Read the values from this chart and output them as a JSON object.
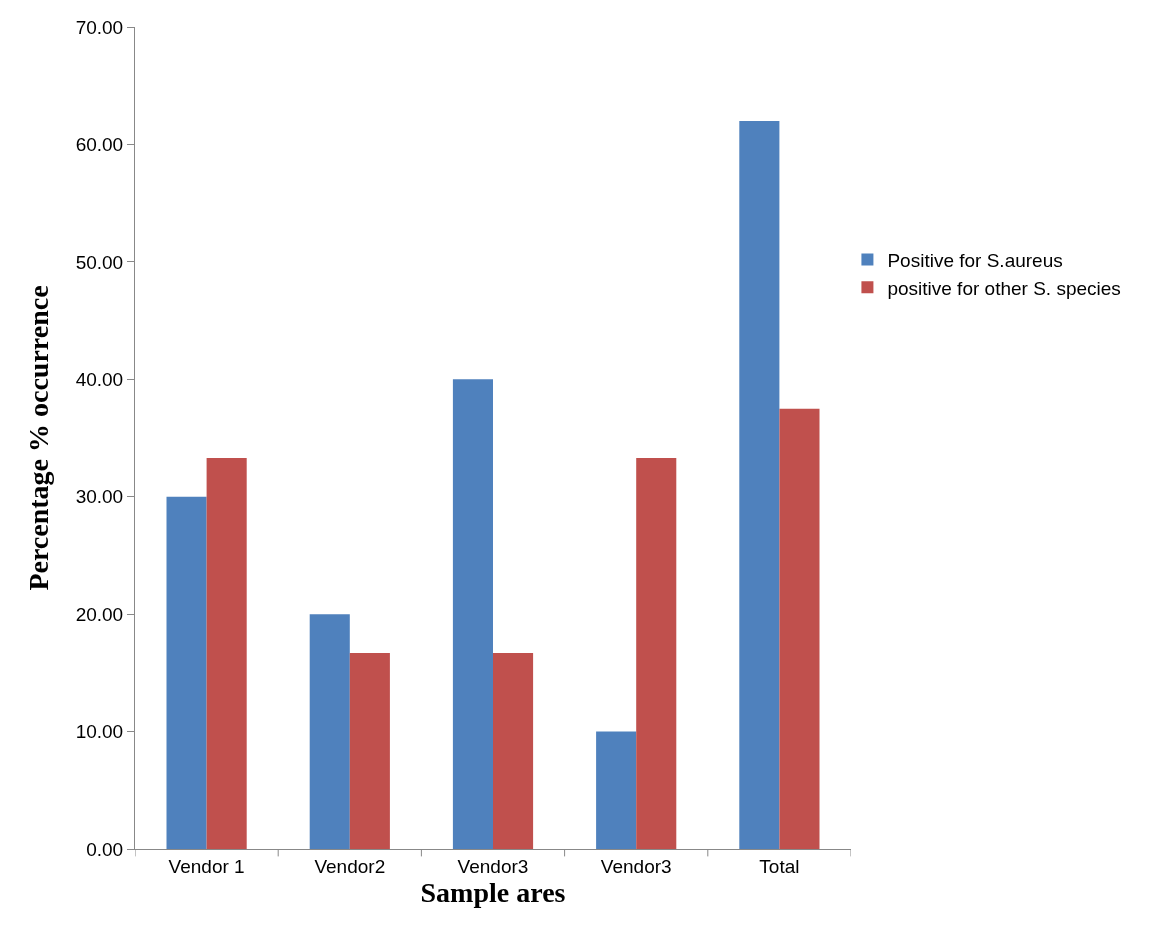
{
  "chart_data": {
    "type": "bar",
    "xlabel": "Sample ares",
    "ylabel": "Percentage % occurrence",
    "categories": [
      "Vendor 1",
      "Vendor2",
      "Vendor3",
      "Vendor3",
      "Total"
    ],
    "series": [
      {
        "name": "Positive for S.aureus",
        "color": "#4f81bd",
        "values": [
          30,
          20,
          40,
          10,
          62
        ]
      },
      {
        "name": "positive for other S. species",
        "color": "#c0504d",
        "values": [
          33.3,
          16.7,
          16.7,
          33.3,
          37.5
        ]
      }
    ],
    "ylim": [
      0,
      70
    ],
    "yticks": [
      {
        "value": 0,
        "label": "0.00"
      },
      {
        "value": 10,
        "label": "10.00"
      },
      {
        "value": 20,
        "label": "20.00"
      },
      {
        "value": 30,
        "label": "30.00"
      },
      {
        "value": 40,
        "label": "40.00"
      },
      {
        "value": 50,
        "label": "50.00"
      },
      {
        "value": 60,
        "label": "60.00"
      },
      {
        "value": 70,
        "label": "70.00"
      }
    ],
    "legend": "right"
  }
}
